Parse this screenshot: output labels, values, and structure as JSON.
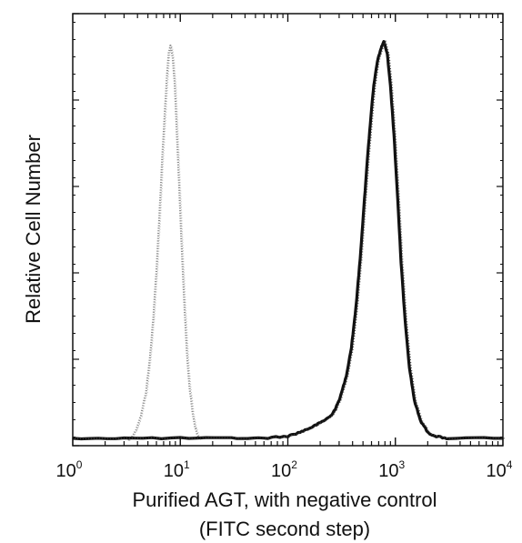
{
  "chart_data": {
    "type": "line",
    "title": "",
    "xlabel_line1": "Purified AGT, with negative control",
    "xlabel_line2": "(FITC second step)",
    "ylabel": "Relative Cell Number",
    "x_scale": "log",
    "xlim": [
      1,
      10000
    ],
    "ylim": [
      0,
      100
    ],
    "x_ticks": [
      {
        "base": "10",
        "exp": "0"
      },
      {
        "base": "10",
        "exp": "1"
      },
      {
        "base": "10",
        "exp": "2"
      },
      {
        "base": "10",
        "exp": "3"
      },
      {
        "base": "10",
        "exp": "4"
      }
    ],
    "grid": false,
    "legend": "none",
    "series": [
      {
        "style": "light dotted gray",
        "color": "#8a8a8a",
        "x": [
          3.3,
          3.8,
          4.3,
          4.8,
          5.2,
          5.6,
          6.0,
          6.4,
          6.8,
          7.2,
          7.5,
          7.8,
          8.1,
          8.5,
          8.9,
          9.3,
          9.8,
          10.3,
          10.9,
          11.5,
          12.2,
          13.0,
          13.8,
          14.6,
          15.5
        ],
        "y": [
          0,
          2,
          6,
          12,
          20,
          30,
          42,
          56,
          70,
          82,
          90,
          96,
          98,
          95,
          88,
          76,
          62,
          48,
          34,
          22,
          13,
          7,
          3,
          1,
          0
        ]
      },
      {
        "style": "solid black",
        "color": "#111111",
        "x": [
          1,
          3,
          10,
          30,
          60,
          100,
          130,
          160,
          190,
          220,
          250,
          280,
          310,
          350,
          390,
          430,
          470,
          510,
          550,
          590,
          630,
          680,
          730,
          780,
          840,
          900,
          970,
          1050,
          1130,
          1230,
          1350,
          1500,
          1700,
          2000,
          2300,
          3000,
          10000
        ],
        "y": [
          0.5,
          0.5,
          0.5,
          0.5,
          0.5,
          1,
          2,
          3,
          4,
          5,
          6,
          8,
          11,
          16,
          23,
          33,
          45,
          58,
          70,
          80,
          88,
          94,
          97,
          99,
          96,
          88,
          76,
          60,
          44,
          30,
          18,
          10,
          5,
          2,
          1,
          0.5,
          0.5
        ]
      }
    ]
  }
}
